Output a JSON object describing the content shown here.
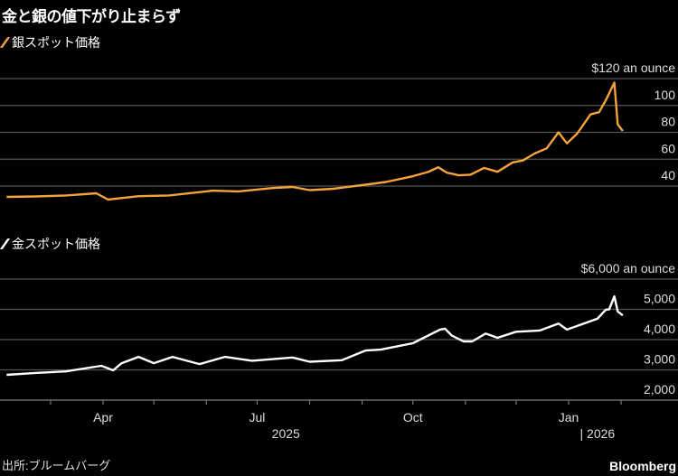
{
  "title": "金と銀の値下がり止まらず",
  "source": "出所:ブルームバーグ",
  "brand": "Bloomberg",
  "colors": {
    "silver": "#f5a33a",
    "gold": "#ffffff",
    "grid": "#555555",
    "axis": "#777777"
  },
  "chart_data": [
    {
      "type": "line",
      "legend": "銀スポット価格",
      "unit_label": "$120 an ounce",
      "yticks": [
        40,
        60,
        80,
        100,
        120
      ],
      "ytick_labels": [
        "40",
        "60",
        "80",
        "100",
        "$120 an ounce"
      ],
      "ylim": [
        40,
        120
      ],
      "series": [
        {
          "name": "銀スポット価格",
          "color": "#f5a33a",
          "dates": [
            "2025-02-03",
            "2025-02-20",
            "2025-03-10",
            "2025-03-28",
            "2025-04-04",
            "2025-04-10",
            "2025-04-22",
            "2025-05-10",
            "2025-06-05",
            "2025-06-20",
            "2025-07-10",
            "2025-07-22",
            "2025-08-01",
            "2025-08-15",
            "2025-09-01",
            "2025-09-15",
            "2025-09-30",
            "2025-10-10",
            "2025-10-16",
            "2025-10-21",
            "2025-10-28",
            "2025-11-04",
            "2025-11-12",
            "2025-11-20",
            "2025-11-29",
            "2025-12-05",
            "2025-12-12",
            "2025-12-19",
            "2025-12-26",
            "2025-12-31",
            "2026-01-06",
            "2026-01-14",
            "2026-01-19",
            "2026-01-23",
            "2026-01-28",
            "2026-01-30",
            "2026-02-02"
          ],
          "values": [
            31.9,
            32.3,
            33.0,
            34.6,
            30.0,
            30.8,
            32.5,
            33.0,
            36.6,
            36.0,
            38.5,
            39.3,
            37.0,
            38.0,
            40.7,
            43.0,
            47.0,
            50.5,
            54.0,
            50.0,
            48.0,
            48.5,
            53.5,
            50.6,
            57.6,
            59.0,
            64.3,
            68.0,
            80.0,
            71.8,
            79.0,
            93.4,
            95.0,
            104.0,
            117.0,
            86.0,
            81.0
          ]
        }
      ],
      "xlabel": "",
      "ylabel": ""
    },
    {
      "type": "line",
      "legend": "金スポット価格",
      "unit_label": "$6,000 an ounce",
      "yticks": [
        2000,
        3000,
        4000,
        5000,
        6000
      ],
      "ytick_labels": [
        "2,000",
        "3,000",
        "4,000",
        "5,000",
        "$6,000 an ounce"
      ],
      "ylim": [
        2000,
        6000
      ],
      "series": [
        {
          "name": "金スポット価格",
          "color": "#ffffff",
          "dates": [
            "2025-02-03",
            "2025-02-20",
            "2025-03-10",
            "2025-03-31",
            "2025-04-07",
            "2025-04-12",
            "2025-04-22",
            "2025-05-01",
            "2025-05-12",
            "2025-05-28",
            "2025-06-12",
            "2025-06-28",
            "2025-07-22",
            "2025-08-01",
            "2025-08-20",
            "2025-09-03",
            "2025-09-12",
            "2025-10-01",
            "2025-10-17",
            "2025-10-20",
            "2025-10-24",
            "2025-10-31",
            "2025-11-05",
            "2025-11-13",
            "2025-11-20",
            "2025-12-01",
            "2025-12-15",
            "2025-12-26",
            "2025-12-31",
            "2026-01-07",
            "2026-01-18",
            "2026-01-23",
            "2026-01-25",
            "2026-01-28",
            "2026-01-30",
            "2026-02-02"
          ],
          "values": [
            2836,
            2900,
            2950,
            3134,
            2985,
            3220,
            3430,
            3220,
            3430,
            3190,
            3430,
            3300,
            3410,
            3270,
            3320,
            3640,
            3670,
            3880,
            4330,
            4360,
            4130,
            3940,
            3940,
            4200,
            4060,
            4260,
            4300,
            4530,
            4330,
            4470,
            4690,
            4990,
            5000,
            5430,
            4930,
            4800
          ]
        }
      ],
      "xlabel": "",
      "ylabel": ""
    }
  ],
  "xaxis": {
    "tick_labels": [
      {
        "date": "2025-04-01",
        "label": "Apr"
      },
      {
        "date": "2025-07-01",
        "label": "Jul"
      },
      {
        "date": "2025-10-01",
        "label": "Oct"
      },
      {
        "date": "2026-01-01",
        "label": "Jan"
      }
    ],
    "minor_ticks": [
      "2025-03-01",
      "2025-04-01",
      "2025-05-01",
      "2025-06-01",
      "2025-07-01",
      "2025-08-01",
      "2025-09-01",
      "2025-10-01",
      "2025-11-01",
      "2025-12-01",
      "2026-01-01",
      "2026-02-01"
    ],
    "year_labels": [
      {
        "date": "2025-07-18",
        "label": "2025"
      },
      {
        "date": "2026-01-18",
        "label": "| 2026"
      }
    ]
  }
}
